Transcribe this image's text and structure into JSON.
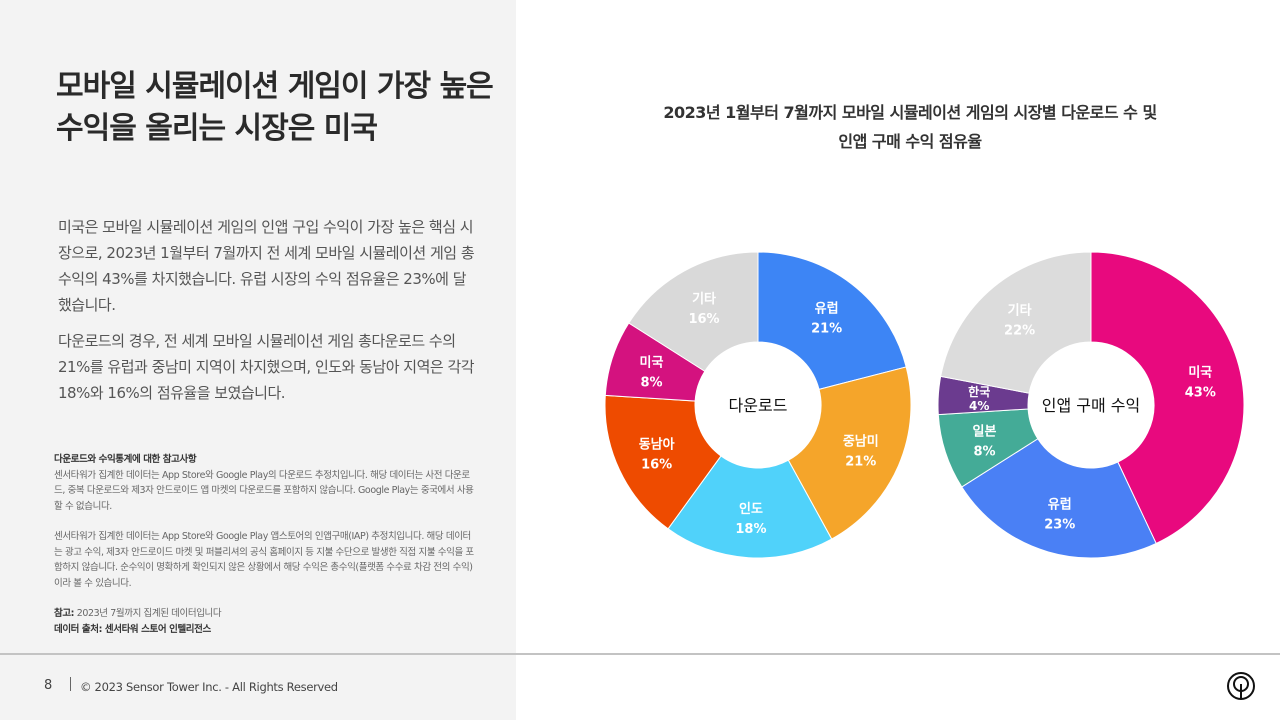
{
  "title": "모바일 시뮬레이션 게임이 가장 높은 수익을 올리는 시장은 미국",
  "paragraphs": [
    "미국은 모바일 시뮬레이션 게임의 인앱 구입 수익이 가장 높은 핵심 시장으로, 2023년 1월부터 7월까지 전 세계 모바일 시뮬레이션 게임 총수익의 43%를 차지했습니다. 유럽 시장의 수익 점유율은 23%에 달했습니다.",
    "다운로드의 경우, 전 세계 모바일 시뮬레이션 게임 총다운로드 수의 21%를 유럽과 중남미 지역이 차지했으며, 인도와 동남아 지역은 각각 18%와 16%의 점유율을 보였습니다."
  ],
  "notes": {
    "heading": "다운로드와 수익통계에 대한 참고사항",
    "note1": "센서타워가 집계한 데이터는 App Store와 Google Play의 다운로드 추정치입니다. 해당 데이터는 사전 다운로드, 중복 다운로드와 제3자 안드로이드 앱 마켓의 다운로드를 포함하지 않습니다. Google Play는 중국에서 사용할 수 없습니다.",
    "note2": "센서타워가 집계한 데이터는 App Store와 Google Play 앱스토어의 인앱구매(IAP) 추정치입니다. 해당 데이터는 광고 수익, 제3자 안드로이드 마켓 및 퍼블리셔의 공식 홈페이지 등 지불 수단으로 발생한 직접 지불 수익을 포함하지 않습니다. 순수익이 명확하게 확인되지 않은 상황에서 해당 수익은 총수익(플랫폼 수수료 차감 전의 수익)이라 볼 수 있습니다.",
    "ref_label": "참고:",
    "ref_text": " 2023년 7월까지 집계된 데이터입니다",
    "source": "데이터 출처: 센서타워 스토어 인텔리전스"
  },
  "footer": {
    "page": "8",
    "copyright": "© 2023 Sensor Tower Inc. - All Rights Reserved"
  },
  "chart_data": [
    {
      "type": "pie",
      "variant": "donut",
      "title": "2023년 1월부터 7월까지 모바일 시뮬레이션 게임의 시장별 다운로드 수 및 인앱 구매 수익 점유율",
      "center_label": "다운로드",
      "unit": "%",
      "categories": [
        "유럽",
        "중남미",
        "인도",
        "동남아",
        "미국",
        "기타"
      ],
      "values": [
        21,
        21,
        18,
        16,
        8,
        16
      ],
      "colors": [
        "#3d85f5",
        "#f5a52a",
        "#50d2fa",
        "#ee4b00",
        "#d4127f",
        "#d9d9d9"
      ]
    },
    {
      "type": "pie",
      "variant": "donut",
      "center_label": "인앱 구매 수익",
      "unit": "%",
      "categories": [
        "미국",
        "유럽",
        "일본",
        "한국",
        "기타"
      ],
      "values": [
        43,
        23,
        8,
        4,
        22
      ],
      "colors": [
        "#e8097e",
        "#4a80f5",
        "#44ab97",
        "#6b3b8f",
        "#dcdcdc"
      ]
    }
  ]
}
